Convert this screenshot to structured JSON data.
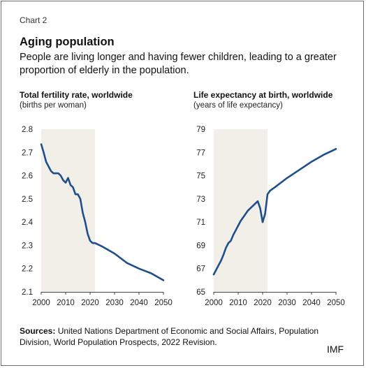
{
  "header": {
    "chart_label": "Chart 2",
    "title": "Aging population",
    "subtitle": "People are living longer and having fewer children, leading to a greater proportion of elderly in the population."
  },
  "footer": {
    "sources_label": "Sources:",
    "sources_text": "United Nations Department of Economic and Social Affairs, Population Division, World Population Prospects, 2022 Revision.",
    "brand": "IMF"
  },
  "colors": {
    "line": "#1f4e8c",
    "shade": "#f2efe9",
    "axis": "#444444"
  },
  "chart_data": [
    {
      "type": "line",
      "title": "Total fertility rate, worldwide",
      "ylabel": "(births per woman)",
      "xlim": [
        2000,
        2050
      ],
      "ylim": [
        2.1,
        2.8
      ],
      "xticks": [
        2000,
        2010,
        2020,
        2030,
        2040,
        2050
      ],
      "yticks": [
        2.1,
        2.2,
        2.3,
        2.4,
        2.5,
        2.6,
        2.7,
        2.8
      ],
      "ytick_labels": [
        "2.1",
        "2.2",
        "2.3",
        "2.4",
        "2.5",
        "2.6",
        "2.7",
        "2.8"
      ],
      "shaded_region": [
        2000,
        2022
      ],
      "grid": false,
      "series": [
        {
          "x": [
            2000,
            2001,
            2002,
            2003,
            2004,
            2005,
            2006,
            2007,
            2008,
            2009,
            2010,
            2011,
            2012,
            2013,
            2014,
            2015,
            2016,
            2017,
            2018,
            2019,
            2020,
            2021,
            2022,
            2025,
            2030,
            2035,
            2040,
            2045,
            2050
          ],
          "y": [
            2.735,
            2.7,
            2.66,
            2.64,
            2.62,
            2.61,
            2.61,
            2.61,
            2.6,
            2.58,
            2.57,
            2.59,
            2.56,
            2.55,
            2.52,
            2.52,
            2.5,
            2.44,
            2.4,
            2.35,
            2.32,
            2.31,
            2.31,
            2.295,
            2.265,
            2.225,
            2.2,
            2.18,
            2.15
          ]
        }
      ]
    },
    {
      "type": "line",
      "title": "Life expectancy at birth, worldwide",
      "ylabel": "(years of life expectancy)",
      "xlim": [
        2000,
        2050
      ],
      "ylim": [
        65,
        79
      ],
      "xticks": [
        2000,
        2010,
        2020,
        2030,
        2040,
        2050
      ],
      "yticks": [
        65,
        67,
        69,
        71,
        73,
        75,
        77,
        79
      ],
      "ytick_labels": [
        "65",
        "67",
        "69",
        "71",
        "73",
        "75",
        "77",
        "79"
      ],
      "shaded_region": [
        2000,
        2022
      ],
      "grid": false,
      "series": [
        {
          "x": [
            2000,
            2001,
            2002,
            2003,
            2004,
            2005,
            2006,
            2007,
            2008,
            2009,
            2010,
            2011,
            2012,
            2013,
            2014,
            2015,
            2016,
            2017,
            2018,
            2019,
            2020,
            2021,
            2022,
            2023,
            2025,
            2030,
            2035,
            2040,
            2045,
            2050
          ],
          "y": [
            66.5,
            66.9,
            67.3,
            67.7,
            68.2,
            68.8,
            69.2,
            69.4,
            69.9,
            70.3,
            70.7,
            71.1,
            71.4,
            71.7,
            72.0,
            72.2,
            72.4,
            72.6,
            72.8,
            72.2,
            71.0,
            71.7,
            73.4,
            73.7,
            74.0,
            74.8,
            75.5,
            76.2,
            76.8,
            77.3
          ]
        }
      ]
    }
  ]
}
